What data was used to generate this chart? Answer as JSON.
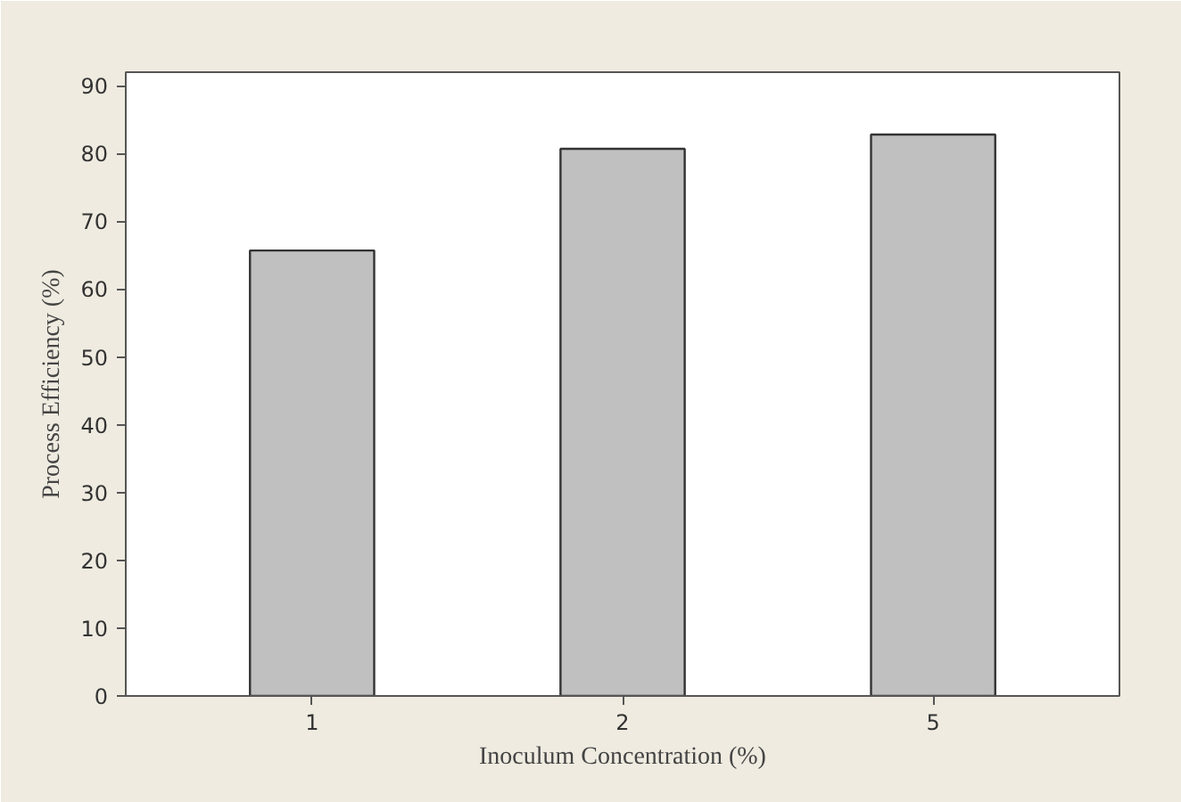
{
  "chart_data": {
    "type": "bar",
    "xlabel": "Inoculum Concentration (%)",
    "ylabel": "Process Efficiency (%)",
    "categories": [
      "1",
      "2",
      "5"
    ],
    "values": [
      65.7,
      80.7,
      82.8
    ],
    "color": "#c0c0c0",
    "ylim": [
      0,
      92
    ],
    "yticks": [
      0,
      10,
      20,
      30,
      40,
      50,
      60,
      70,
      80,
      90
    ],
    "grid": false
  }
}
